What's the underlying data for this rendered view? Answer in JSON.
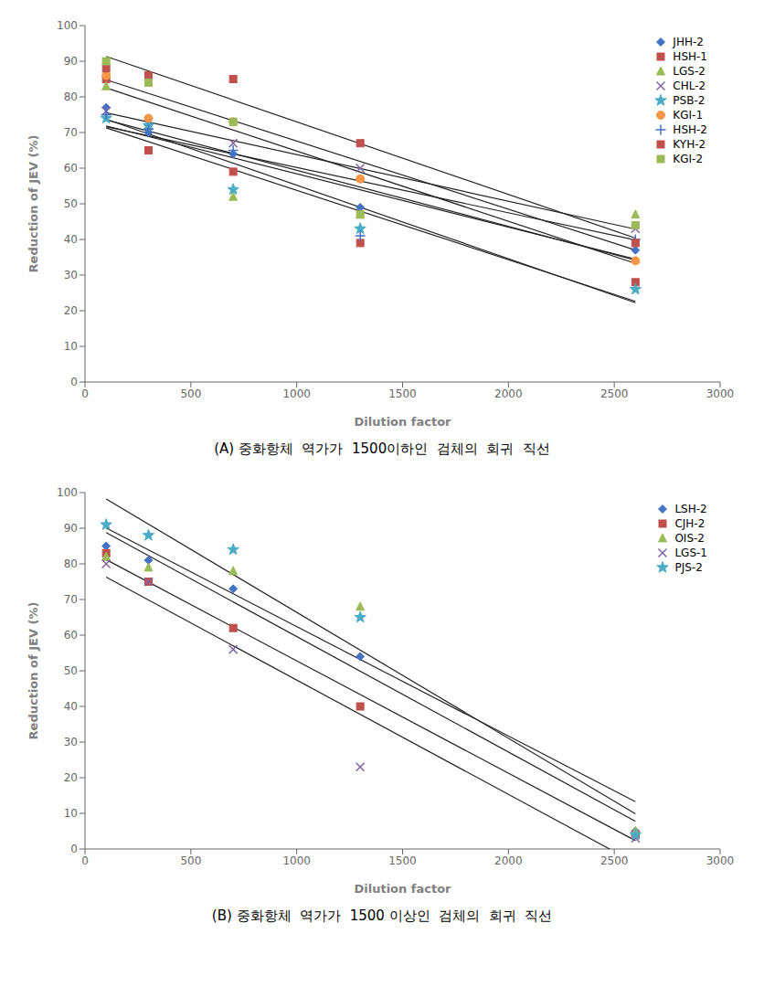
{
  "chart_data": [
    {
      "type": "scatter",
      "title": "(A) 중화항체  역가가  1500이하인  검체의  회귀  직선",
      "x_label": "Dilution factor",
      "y_label": "Reduction of JEV (%)",
      "xlim": [
        0,
        3000
      ],
      "ylim": [
        0,
        100
      ],
      "xticks": [
        0,
        500,
        1000,
        1500,
        2000,
        2500,
        3000
      ],
      "yticks": [
        0,
        10,
        20,
        30,
        40,
        50,
        60,
        70,
        80,
        90,
        100
      ],
      "grid": false,
      "legend": "upper right",
      "series": [
        {
          "name": "JHH-2",
          "color": "#4472C4",
          "marker": "diamond",
          "x": [
            100,
            300,
            700,
            1300,
            2600
          ],
          "values": [
            77,
            70,
            64,
            49,
            37
          ],
          "trend": {
            "x": [
              100,
              2600
            ],
            "values": [
              73.57,
              34.21
            ],
            "color": "#222222"
          }
        },
        {
          "name": "HSH-1",
          "color": "#C0504D",
          "marker": "square",
          "x": [
            100,
            300,
            700,
            1300,
            2600
          ],
          "values": [
            85,
            65,
            59,
            39,
            28
          ],
          "trend": {
            "x": [
              100,
              2600
            ],
            "values": [
              73.73,
              22.25
            ],
            "color": "#222222"
          }
        },
        {
          "name": "LGS-2",
          "color": "#9BBB59",
          "marker": "triangle",
          "x": [
            100,
            300,
            700,
            1300,
            2600
          ],
          "values": [
            83,
            72,
            52,
            47,
            47
          ],
          "trend": {
            "x": [
              100,
              2600
            ],
            "values": [
              71.65,
              39.84
            ],
            "color": "#222222"
          }
        },
        {
          "name": "CHL-2",
          "color": "#8064A2",
          "marker": "x",
          "x": [
            100,
            300,
            700,
            1300,
            2600
          ],
          "values": [
            76,
            73,
            67,
            60,
            43
          ],
          "trend": {
            "x": [
              100,
              2600
            ],
            "values": [
              75.56,
              42.89
            ],
            "color": "#222222"
          }
        },
        {
          "name": "PSB-2",
          "color": "#4BACC6",
          "marker": "star",
          "x": [
            100,
            300,
            700,
            1300,
            2600
          ],
          "values": [
            74,
            72,
            54,
            43,
            26
          ],
          "trend": {
            "x": [
              100,
              2600
            ],
            "values": [
              71.33,
              22.63
            ],
            "color": "#222222"
          }
        },
        {
          "name": "KGI-1",
          "color": "#F79646",
          "marker": "circle",
          "x": [
            100,
            300,
            700,
            1300,
            2600
          ],
          "values": [
            86,
            74,
            73,
            57,
            34
          ],
          "trend": {
            "x": [
              100,
              2600
            ],
            "values": [
              82.53,
              33.28
            ],
            "color": "#222222"
          }
        },
        {
          "name": "HSH-2",
          "color": "#4472C4",
          "marker": "plus",
          "x": [
            100,
            300,
            700,
            1300,
            2600
          ],
          "values": [
            75,
            71,
            65,
            41,
            40
          ],
          "trend": {
            "x": [
              100,
              2600
            ],
            "values": [
              71.86,
              34.48
            ],
            "color": "#222222"
          }
        },
        {
          "name": "KYH-2",
          "color": "#C0504D",
          "marker": "square",
          "x": [
            100,
            300,
            700,
            1300,
            2600
          ],
          "values": [
            88,
            86,
            85,
            67,
            39
          ],
          "trend": {
            "x": [
              100,
              2600
            ],
            "values": [
              91.36,
              40.37
            ],
            "color": "#222222"
          }
        },
        {
          "name": "KGI-2",
          "color": "#9BBB59",
          "marker": "square",
          "x": [
            100,
            300,
            700,
            1300,
            2600
          ],
          "values": [
            90,
            84,
            73,
            47,
            44
          ],
          "trend": {
            "x": [
              100,
              2600
            ],
            "values": [
              84.8,
              37.03
            ],
            "color": "#222222"
          }
        }
      ]
    },
    {
      "type": "scatter",
      "title": "(B) 중화항체  역가가  1500 이상인  검체의  회귀  직선",
      "x_label": "Dilution factor",
      "y_label": "Reduction of JEV (%)",
      "xlim": [
        0,
        3000
      ],
      "ylim": [
        0,
        100
      ],
      "xticks": [
        0,
        500,
        1000,
        1500,
        2000,
        2500,
        3000
      ],
      "yticks": [
        0,
        10,
        20,
        30,
        40,
        50,
        60,
        70,
        80,
        90,
        100
      ],
      "grid": false,
      "legend": "upper right",
      "series": [
        {
          "name": "LSH-2",
          "color": "#4472C4",
          "marker": "diamond",
          "x": [
            100,
            300,
            700,
            1300,
            2600
          ],
          "values": [
            85,
            81,
            73,
            54,
            5
          ],
          "trend": {
            "x": [
              100,
              2600
            ],
            "values": [
              88.76,
              7.76
            ],
            "color": "#222222"
          }
        },
        {
          "name": "CJH-2",
          "color": "#C0504D",
          "marker": "square",
          "x": [
            100,
            300,
            700,
            1300,
            2600
          ],
          "values": [
            83,
            75,
            62,
            40,
            4
          ],
          "trend": {
            "x": [
              100,
              2600
            ],
            "values": [
              81.18,
              2.34
            ],
            "color": "#222222"
          }
        },
        {
          "name": "OIS-2",
          "color": "#9BBB59",
          "marker": "triangle",
          "x": [
            100,
            300,
            700,
            1300,
            2600
          ],
          "values": [
            82,
            79,
            78,
            68,
            5
          ],
          "trend": {
            "x": [
              100,
              2600
            ],
            "values": [
              90.05,
              13.25
            ],
            "color": "#222222"
          }
        },
        {
          "name": "LGS-1",
          "color": "#8064A2",
          "marker": "x",
          "x": [
            100,
            300,
            700,
            1300,
            2600
          ],
          "values": [
            80,
            75,
            56,
            23,
            3
          ],
          "trend": {
            "x": [
              100,
              2600
            ],
            "values": [
              76.27,
              -3.93
            ],
            "color": "#222222"
          }
        },
        {
          "name": "PJS-2",
          "color": "#4BACC6",
          "marker": "star",
          "x": [
            100,
            300,
            700,
            1300,
            2600
          ],
          "values": [
            91,
            88,
            84,
            65,
            4
          ],
          "trend": {
            "x": [
              100,
              2600
            ],
            "values": [
              98.21,
              9.85
            ],
            "color": "#222222"
          }
        }
      ]
    }
  ]
}
